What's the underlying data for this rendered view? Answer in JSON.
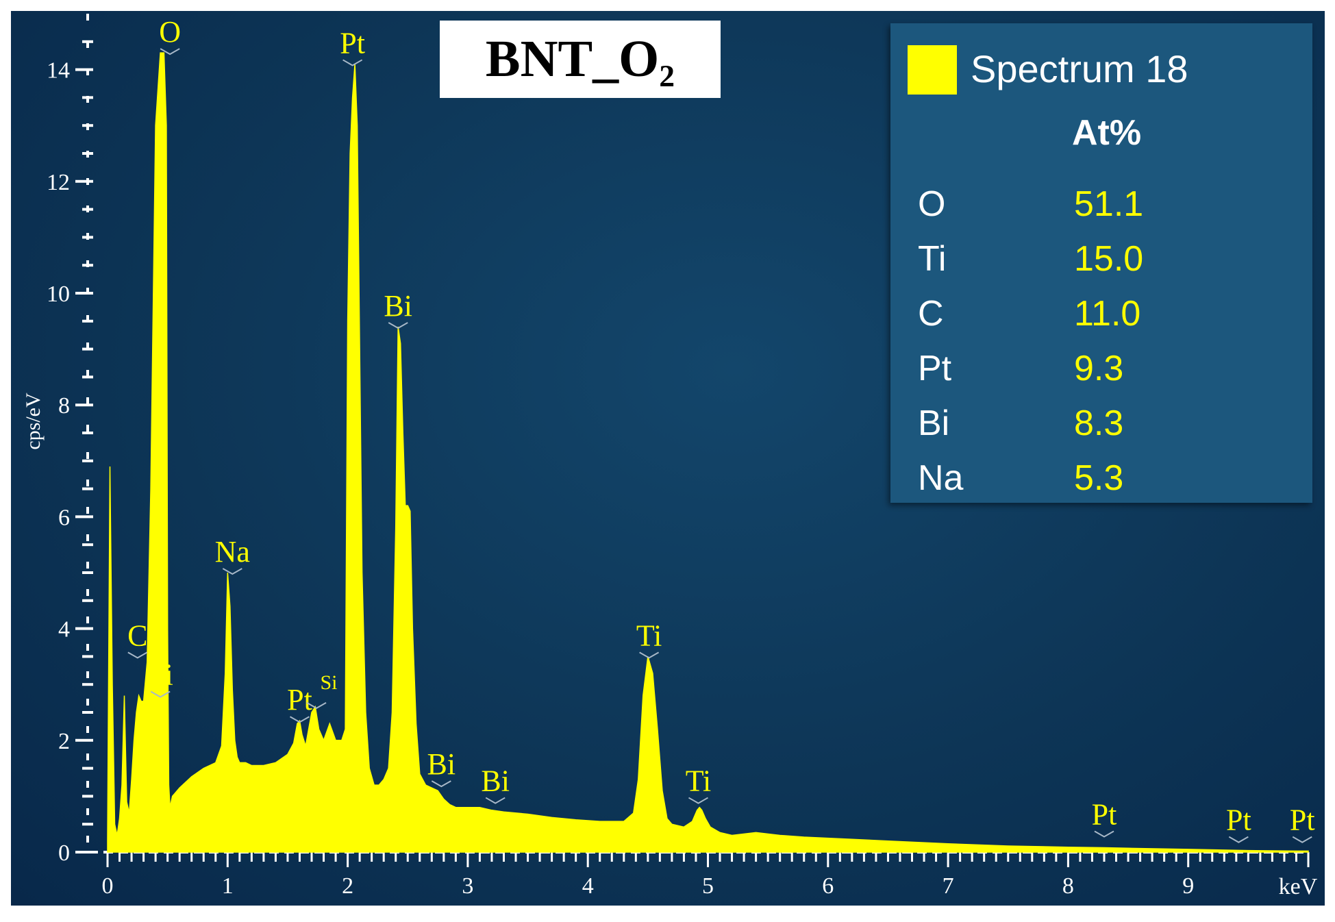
{
  "chart_data": {
    "type": "area",
    "title": "BNT_O₂",
    "xlabel": "keV",
    "ylabel": "cps/eV",
    "xlim": [
      0,
      10
    ],
    "ylim": [
      0,
      15
    ],
    "x_ticks": [
      0,
      1,
      2,
      3,
      4,
      5,
      6,
      7,
      8,
      9
    ],
    "y_ticks": [
      0,
      2,
      4,
      6,
      8,
      10,
      12,
      14
    ],
    "grid": false,
    "series": [
      {
        "name": "Spectrum 18",
        "color": "#ffff00",
        "x": [
          0.0,
          0.02,
          0.04,
          0.06,
          0.08,
          0.1,
          0.12,
          0.14,
          0.16,
          0.18,
          0.2,
          0.22,
          0.24,
          0.26,
          0.28,
          0.3,
          0.33,
          0.36,
          0.4,
          0.44,
          0.47,
          0.49,
          0.5,
          0.51,
          0.52,
          0.53,
          0.54,
          0.56,
          0.58,
          0.6,
          0.65,
          0.7,
          0.8,
          0.9,
          0.95,
          0.98,
          1.0,
          1.02,
          1.04,
          1.06,
          1.08,
          1.1,
          1.15,
          1.2,
          1.3,
          1.4,
          1.5,
          1.55,
          1.58,
          1.6,
          1.62,
          1.65,
          1.7,
          1.73,
          1.76,
          1.8,
          1.85,
          1.9,
          1.95,
          1.98,
          2.0,
          2.02,
          2.04,
          2.06,
          2.08,
          2.1,
          2.12,
          2.15,
          2.18,
          2.22,
          2.26,
          2.3,
          2.34,
          2.37,
          2.4,
          2.42,
          2.44,
          2.46,
          2.48,
          2.5,
          2.52,
          2.54,
          2.57,
          2.6,
          2.65,
          2.7,
          2.75,
          2.8,
          2.85,
          2.9,
          3.0,
          3.1,
          3.2,
          3.3,
          3.5,
          3.7,
          3.9,
          4.1,
          4.3,
          4.38,
          4.42,
          4.46,
          4.5,
          4.54,
          4.58,
          4.62,
          4.66,
          4.7,
          4.8,
          4.87,
          4.91,
          4.93,
          4.95,
          4.98,
          5.02,
          5.1,
          5.2,
          5.4,
          5.6,
          5.8,
          6.0,
          6.5,
          7.0,
          7.5,
          8.0,
          8.3,
          8.5,
          9.0,
          9.5,
          9.9,
          10.0
        ],
        "y": [
          0.2,
          6.9,
          3.0,
          0.5,
          0.3,
          0.6,
          1.2,
          2.8,
          0.9,
          0.7,
          1.3,
          2.0,
          2.5,
          2.8,
          2.7,
          2.7,
          3.4,
          6.5,
          13.0,
          14.3,
          14.3,
          13.0,
          4.0,
          1.2,
          0.8,
          0.9,
          1.0,
          1.05,
          1.1,
          1.15,
          1.25,
          1.35,
          1.5,
          1.6,
          1.9,
          3.2,
          5.0,
          4.4,
          2.9,
          2.0,
          1.7,
          1.6,
          1.6,
          1.55,
          1.55,
          1.6,
          1.75,
          1.95,
          2.3,
          2.35,
          2.1,
          1.9,
          2.5,
          2.6,
          2.2,
          2.0,
          2.3,
          2.0,
          2.0,
          2.2,
          9.5,
          12.5,
          13.5,
          14.1,
          13.0,
          9.0,
          5.0,
          2.5,
          1.5,
          1.2,
          1.2,
          1.3,
          1.5,
          2.5,
          5.8,
          9.4,
          9.1,
          7.5,
          6.2,
          6.2,
          6.1,
          4.0,
          2.3,
          1.4,
          1.2,
          1.15,
          1.1,
          0.95,
          0.85,
          0.8,
          0.8,
          0.8,
          0.75,
          0.72,
          0.68,
          0.62,
          0.58,
          0.55,
          0.55,
          0.7,
          1.3,
          2.8,
          3.5,
          3.2,
          2.2,
          1.1,
          0.6,
          0.5,
          0.45,
          0.55,
          0.75,
          0.8,
          0.75,
          0.6,
          0.45,
          0.35,
          0.3,
          0.35,
          0.3,
          0.27,
          0.25,
          0.2,
          0.15,
          0.11,
          0.09,
          0.08,
          0.07,
          0.05,
          0.03,
          0.02,
          0.02
        ]
      }
    ],
    "peak_labels": [
      {
        "text": "O",
        "x": 0.52,
        "y": 14.3
      },
      {
        "text": "Pt",
        "x": 2.04,
        "y": 14.1
      },
      {
        "text": "Bi",
        "x": 2.42,
        "y": 9.4
      },
      {
        "text": "Na",
        "x": 1.04,
        "y": 5.0
      },
      {
        "text": "C",
        "x": 0.25,
        "y": 3.5
      },
      {
        "text": "Ti",
        "x": 0.44,
        "y": 2.8
      },
      {
        "text": "Pt",
        "x": 1.6,
        "y": 2.35
      },
      {
        "text": "Si",
        "x": 1.74,
        "y": 2.6
      },
      {
        "text": "Ti",
        "x": 4.51,
        "y": 3.5
      },
      {
        "text": "Bi",
        "x": 2.78,
        "y": 1.2
      },
      {
        "text": "Bi",
        "x": 3.23,
        "y": 0.9
      },
      {
        "text": "Ti",
        "x": 4.92,
        "y": 0.9
      },
      {
        "text": "Pt",
        "x": 8.3,
        "y": 0.3
      },
      {
        "text": "Pt",
        "x": 9.42,
        "y": 0.2
      },
      {
        "text": "Pt",
        "x": 9.95,
        "y": 0.2
      }
    ]
  },
  "legend": {
    "title": "Spectrum 18",
    "header": "At%",
    "rows": [
      {
        "element": "O",
        "value": "51.1"
      },
      {
        "element": "Ti",
        "value": "15.0"
      },
      {
        "element": "C",
        "value": "11.0"
      },
      {
        "element": "Pt",
        "value": "9.3"
      },
      {
        "element": "Bi",
        "value": "8.3"
      },
      {
        "element": "Na",
        "value": "5.3"
      }
    ]
  }
}
